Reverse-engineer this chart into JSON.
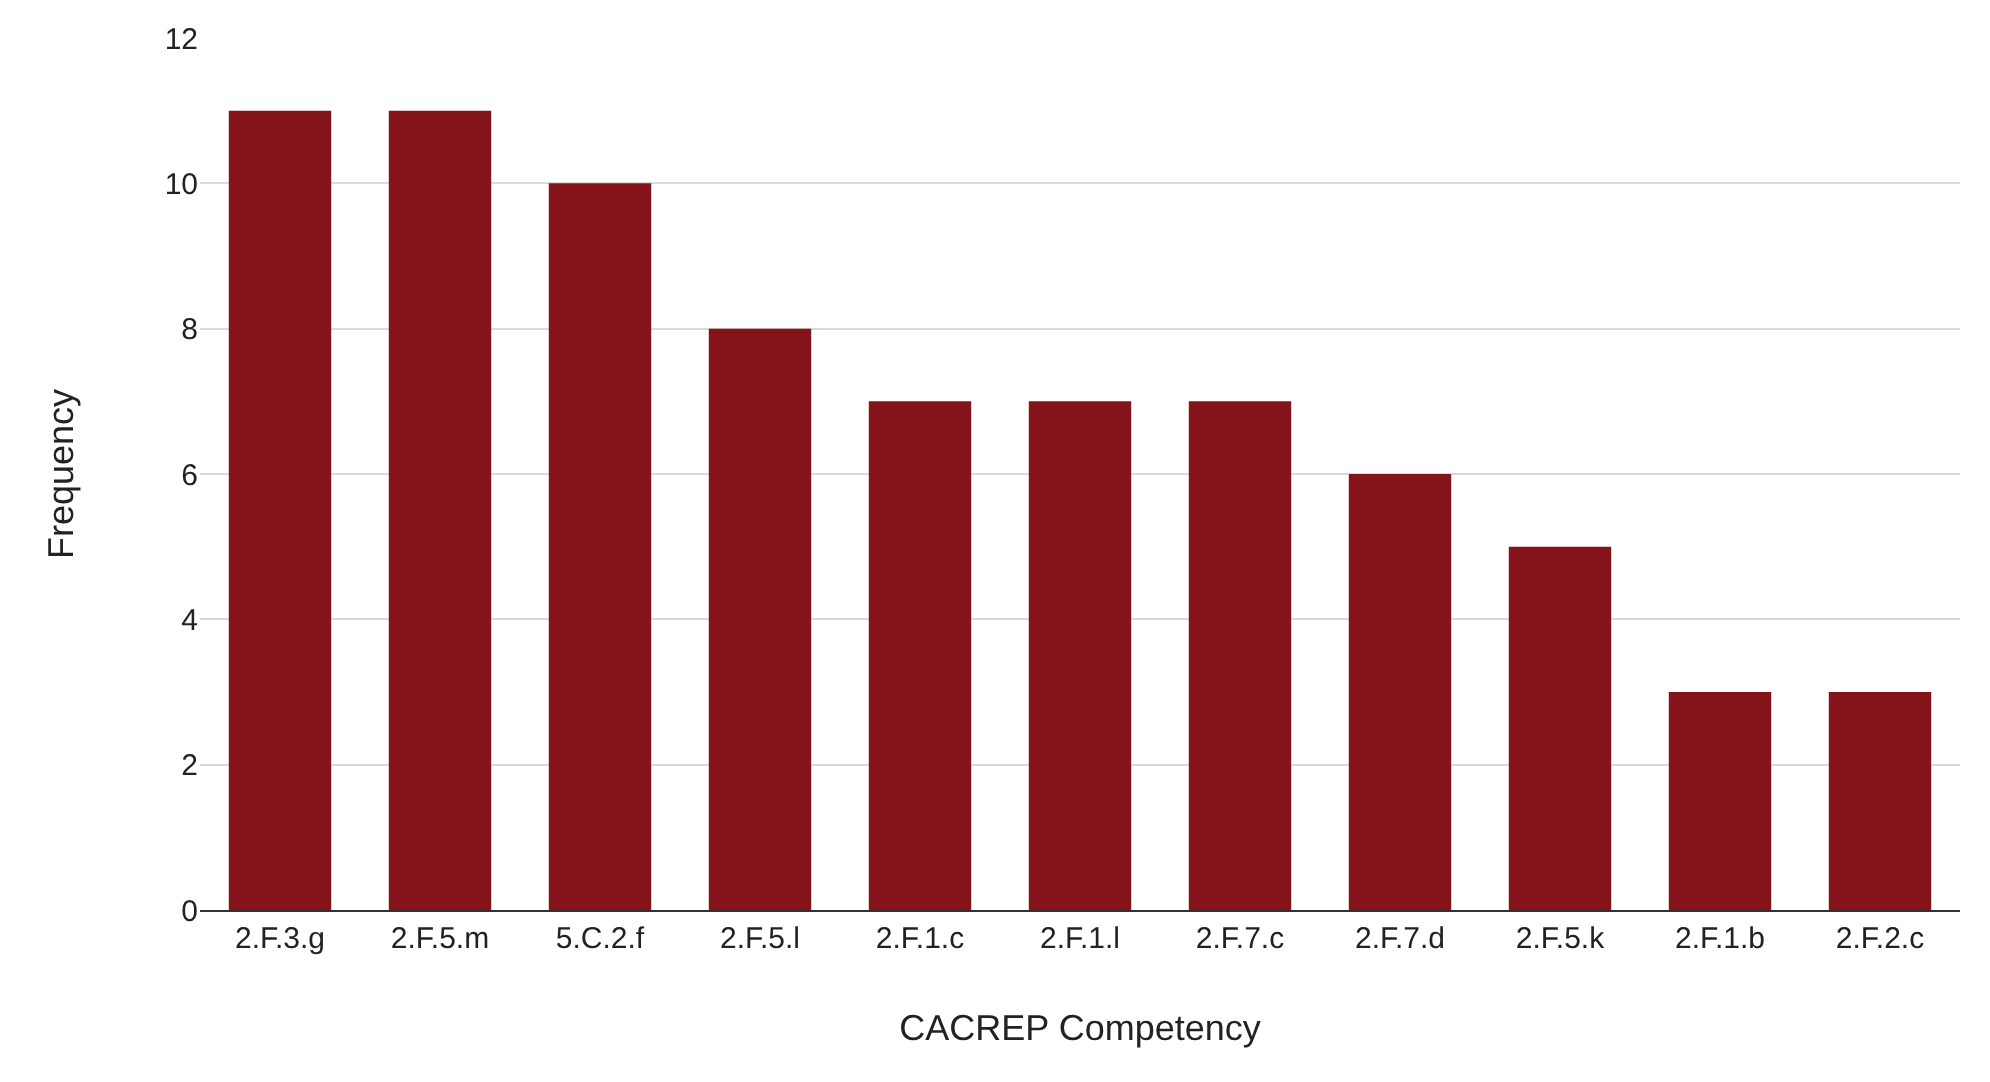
{
  "chart_data": {
    "type": "bar",
    "xlabel": "CACREP Competency",
    "ylabel": "Frequency",
    "categories": [
      "2.F.3.g",
      "2.F.5.m",
      "5.C.2.f",
      "2.F.5.l",
      "2.F.1.c",
      "2.F.1.l",
      "2.F.7.c",
      "2.F.7.d",
      "2.F.5.k",
      "2.F.1.b",
      "2.F.2.c"
    ],
    "values": [
      11,
      11,
      10,
      8,
      7,
      7,
      7,
      6,
      5,
      3,
      3
    ],
    "color": "#85141a",
    "ylim": [
      0,
      12
    ],
    "yticks": [
      0,
      2,
      4,
      6,
      8,
      10,
      12
    ],
    "grid": "y"
  }
}
